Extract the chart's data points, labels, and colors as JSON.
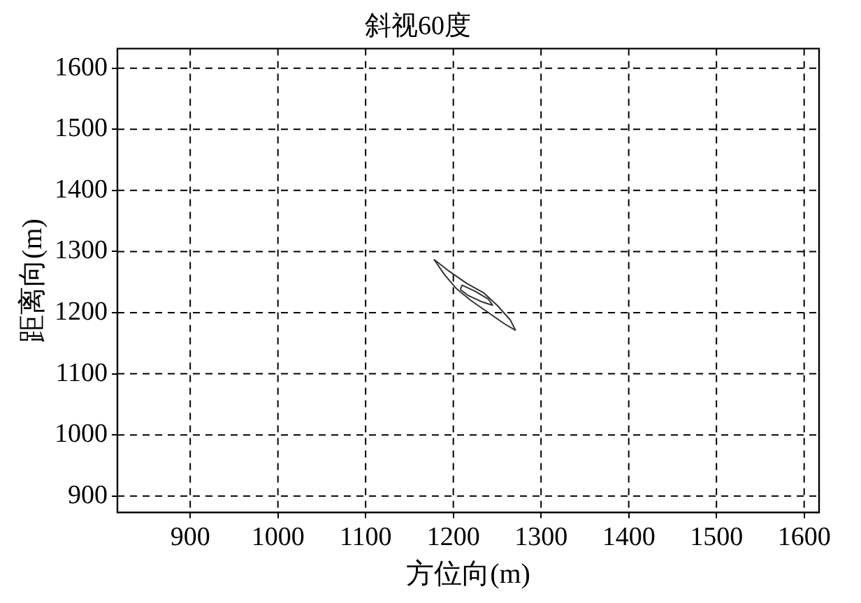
{
  "chart_data": {
    "type": "line",
    "title": "斜视60度",
    "xlabel": "方位向(m)",
    "ylabel": "距离向(m)",
    "xlim": [
      817,
      1617
    ],
    "xticks": [
      900,
      1000,
      1100,
      1200,
      1300,
      1400,
      1500,
      1600
    ],
    "ylim": [
      873,
      1632
    ],
    "yticks": [
      900,
      1000,
      1100,
      1200,
      1300,
      1400,
      1500,
      1600
    ],
    "grid": true,
    "marker": "none",
    "line_style": "solid",
    "series": [
      {
        "color": "#333333",
        "x": [
          1178,
          1195,
          1215,
          1235,
          1250,
          1265,
          1271
        ],
        "values": [
          1287,
          1268,
          1248,
          1232,
          1212,
          1188,
          1171
        ]
      },
      {
        "color": "#333333",
        "x": [
          1178,
          1190,
          1203,
          1220,
          1240,
          1258,
          1271
        ],
        "values": [
          1287,
          1262,
          1240,
          1220,
          1200,
          1182,
          1171
        ]
      },
      {
        "color": "#333333",
        "x": [
          1208,
          1210,
          1225,
          1240,
          1245
        ],
        "values": [
          1238,
          1245,
          1235,
          1222,
          1212
        ]
      },
      {
        "color": "#333333",
        "x": [
          1208,
          1217,
          1232,
          1245
        ],
        "values": [
          1238,
          1228,
          1218,
          1212
        ]
      }
    ]
  }
}
